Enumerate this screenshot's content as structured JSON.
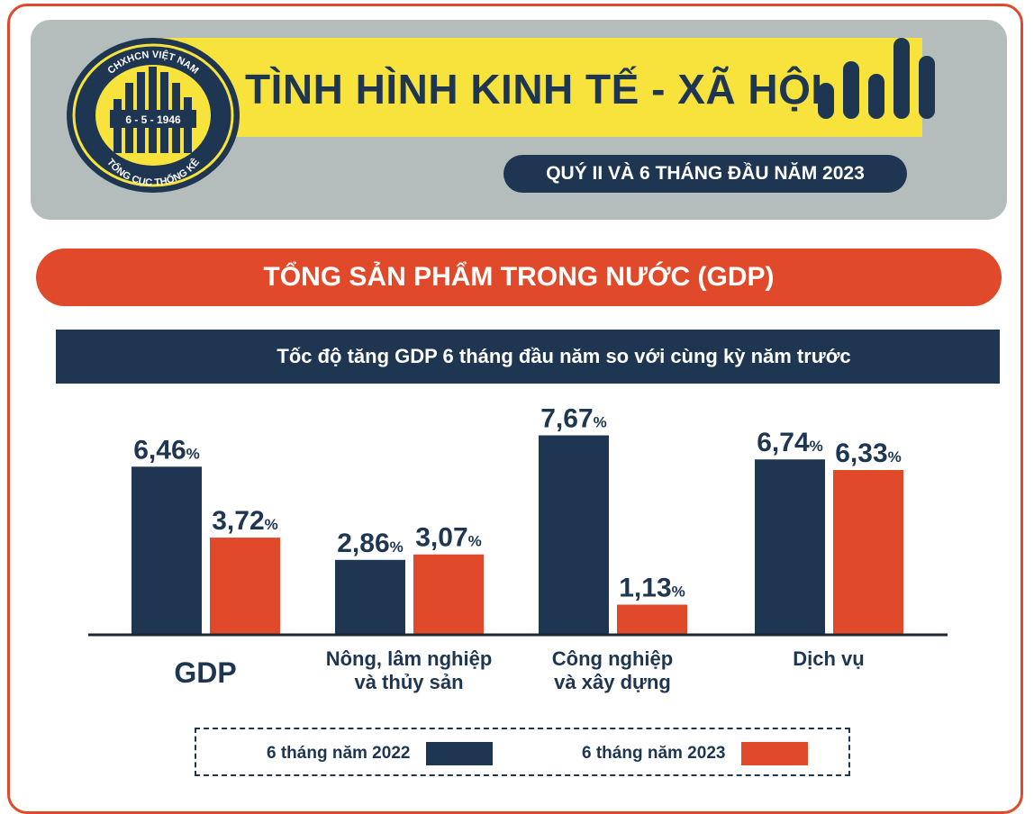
{
  "header": {
    "title": "TÌNH HÌNH KINH TẾ - XÃ HỘI",
    "subtitle": "QUÝ II VÀ 6 THÁNG ĐẦU NĂM 2023",
    "logo_text_top": "CHXHCN VIỆT NAM",
    "logo_text_date": "6 - 5 - 1946",
    "logo_text_bottom": "TỔNG CỤC THỐNG KÊ"
  },
  "section": {
    "title": "TỔNG SẢN PHẨM TRONG NƯỚC (GDP)"
  },
  "colors": {
    "navy": "#1e3651",
    "orange": "#e04a2a",
    "yellow": "#f7e33b",
    "gray": "#b4bcbc"
  },
  "chart_data": {
    "type": "bar",
    "title": "Tốc độ tăng GDP 6 tháng đầu năm so với cùng kỳ năm trước",
    "categories": [
      "GDP",
      "Nông, lâm nghiệp và thủy sản",
      "Công nghiệp và xây dựng",
      "Dịch vụ"
    ],
    "category_lines": [
      [
        "GDP"
      ],
      [
        "Nông, lâm nghiệp",
        "và thủy sản"
      ],
      [
        "Công nghiệp",
        "và xây dựng"
      ],
      [
        "Dịch vụ"
      ]
    ],
    "series": [
      {
        "name": "6 tháng năm 2022",
        "values": [
          6.46,
          2.86,
          7.67,
          6.74
        ],
        "labels": [
          "6,46",
          "2,86",
          "7,67",
          "6,74"
        ],
        "color": "#1e3651"
      },
      {
        "name": "6 tháng năm 2023",
        "values": [
          3.72,
          3.07,
          1.13,
          6.33
        ],
        "labels": [
          "3,72",
          "3,07",
          "1,13",
          "6,33"
        ],
        "color": "#e04a2a"
      }
    ],
    "unit": "%",
    "ylim": [
      0,
      8
    ],
    "grid": false,
    "legend_position": "bottom"
  }
}
